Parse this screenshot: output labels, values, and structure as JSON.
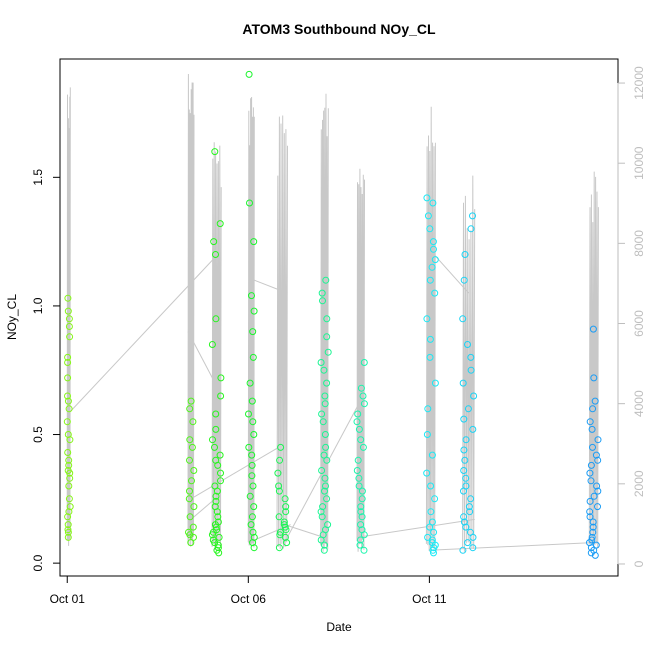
{
  "chart_data": {
    "type": "scatter",
    "title": "ATOM3 Southbound NOy_CL",
    "xlabel": "Date",
    "ylabel": "NOy_CL",
    "x_axis": {
      "type": "date",
      "range": [
        "2017-09-30T19:12",
        "2017-10-16T05:00"
      ],
      "ticks": [
        {
          "value": "2017-10-01",
          "label": "Oct 01"
        },
        {
          "value": "2017-10-06",
          "label": "Oct 06"
        },
        {
          "value": "2017-10-11",
          "label": "Oct 11"
        }
      ]
    },
    "y_axis": {
      "range": [
        -0.05,
        1.96
      ],
      "ticks": [
        {
          "value": 0.0,
          "label": "0.0"
        },
        {
          "value": 0.5,
          "label": "0.5"
        },
        {
          "value": 1.0,
          "label": "1.0"
        },
        {
          "value": 1.5,
          "label": "1.5"
        }
      ]
    },
    "y2_axis": {
      "label": "",
      "color": "#bebebe",
      "range": [
        -300,
        12600
      ],
      "ticks": [
        {
          "value": 0,
          "label": "0"
        },
        {
          "value": 2000,
          "label": "2000"
        },
        {
          "value": 4000,
          "label": "4000"
        },
        {
          "value": 6000,
          "label": "6000"
        },
        {
          "value": 8000,
          "label": "8000"
        },
        {
          "value": 10000,
          "label": "10000"
        },
        {
          "value": 12000,
          "label": "12000"
        }
      ]
    },
    "grid": false,
    "legend": "none",
    "colors": {
      "altitude_line": "#c8c8c8",
      "connector_line": "#c8c8c8",
      "point_gradient": [
        "#7fff00",
        "#00ff30",
        "#00ffb0",
        "#00ffff",
        "#0090ff"
      ]
    },
    "series": [
      {
        "flight_date": "2017-10-01",
        "color": "#86f518",
        "x_range": [
          "2017-10-01T00:00",
          "2017-10-01T02:00"
        ],
        "altitude_ft": {
          "min": 400,
          "max": 12200
        },
        "values": [
          0.1,
          0.12,
          0.13,
          0.15,
          0.18,
          0.2,
          0.22,
          0.25,
          0.3,
          0.33,
          0.35,
          0.36,
          0.38,
          0.4,
          0.43,
          0.48,
          0.5,
          0.55,
          0.6,
          0.63,
          0.65,
          0.72,
          0.78,
          0.8,
          0.88,
          0.92,
          0.95,
          0.98,
          1.03
        ]
      },
      {
        "flight_date": "2017-10-04",
        "color": "#4ef51a",
        "x_range": [
          "2017-10-04T08:00",
          "2017-10-04T12:00"
        ],
        "altitude_ft": {
          "min": 400,
          "max": 12600
        },
        "values": [
          0.08,
          0.1,
          0.11,
          0.12,
          0.14,
          0.18,
          0.22,
          0.25,
          0.28,
          0.32,
          0.36,
          0.4,
          0.45,
          0.48,
          0.55,
          0.6,
          0.63
        ]
      },
      {
        "flight_date": "2017-10-05",
        "color": "#26f51e",
        "x_range": [
          "2017-10-05T00:00",
          "2017-10-05T06:00"
        ],
        "altitude_ft": {
          "min": 300,
          "max": 10800
        },
        "values": [
          0.04,
          0.05,
          0.06,
          0.07,
          0.08,
          0.09,
          0.1,
          0.11,
          0.12,
          0.13,
          0.14,
          0.15,
          0.16,
          0.18,
          0.2,
          0.22,
          0.24,
          0.26,
          0.28,
          0.3,
          0.32,
          0.35,
          0.38,
          0.4,
          0.42,
          0.45,
          0.48,
          0.52,
          0.58,
          0.65,
          0.72,
          0.85,
          0.95,
          1.2,
          1.25,
          1.32,
          1.6
        ]
      },
      {
        "flight_date": "2017-10-06",
        "color": "#1af52c",
        "x_range": [
          "2017-10-06T00:00",
          "2017-10-06T04:00"
        ],
        "altitude_ft": {
          "min": 300,
          "max": 11800
        },
        "values": [
          0.06,
          0.08,
          0.1,
          0.12,
          0.15,
          0.18,
          0.22,
          0.26,
          0.3,
          0.34,
          0.38,
          0.42,
          0.45,
          0.5,
          0.55,
          0.58,
          0.63,
          0.7,
          0.8,
          0.9,
          0.98,
          1.04,
          1.25,
          1.4,
          1.9
        ]
      },
      {
        "flight_date": "2017-10-07",
        "color": "#1af554",
        "x_range": [
          "2017-10-06T19:00",
          "2017-10-07T02:00"
        ],
        "altitude_ft": {
          "min": 300,
          "max": 11200
        },
        "values": [
          0.06,
          0.08,
          0.1,
          0.11,
          0.12,
          0.13,
          0.14,
          0.15,
          0.16,
          0.18,
          0.2,
          0.22,
          0.25,
          0.28,
          0.3,
          0.35,
          0.4,
          0.45
        ]
      },
      {
        "flight_date": "2017-10-08",
        "color": "#1af592",
        "x_range": [
          "2017-10-08T00:00",
          "2017-10-08T05:00"
        ],
        "altitude_ft": {
          "min": 300,
          "max": 12200
        },
        "values": [
          0.05,
          0.07,
          0.09,
          0.11,
          0.13,
          0.15,
          0.18,
          0.2,
          0.22,
          0.25,
          0.28,
          0.3,
          0.33,
          0.36,
          0.4,
          0.42,
          0.45,
          0.5,
          0.55,
          0.58,
          0.62,
          0.65,
          0.7,
          0.75,
          0.78,
          0.82,
          0.88,
          0.95,
          1.02,
          1.05,
          1.1
        ]
      },
      {
        "flight_date": "2017-10-09",
        "color": "#1af5ac",
        "x_range": [
          "2017-10-09T00:00",
          "2017-10-09T05:00"
        ],
        "altitude_ft": {
          "min": 300,
          "max": 10500
        },
        "values": [
          0.05,
          0.07,
          0.09,
          0.11,
          0.13,
          0.15,
          0.18,
          0.2,
          0.22,
          0.25,
          0.28,
          0.3,
          0.33,
          0.36,
          0.4,
          0.45,
          0.48,
          0.52,
          0.55,
          0.58,
          0.62,
          0.65,
          0.68,
          0.78
        ]
      },
      {
        "flight_date": "2017-10-11",
        "color": "#1ae9f5",
        "x_range": [
          "2017-10-10T22:00",
          "2017-10-11T04:00"
        ],
        "altitude_ft": {
          "min": 300,
          "max": 11800
        },
        "values": [
          0.04,
          0.05,
          0.06,
          0.07,
          0.08,
          0.09,
          0.1,
          0.12,
          0.14,
          0.16,
          0.2,
          0.25,
          0.3,
          0.35,
          0.42,
          0.5,
          0.6,
          0.7,
          0.8,
          0.87,
          0.95,
          1.05,
          1.1,
          1.15,
          1.18,
          1.22,
          1.25,
          1.3,
          1.35,
          1.4,
          1.42
        ]
      },
      {
        "flight_date": "2017-10-12",
        "color": "#1ad3f5",
        "x_range": [
          "2017-10-11T22:00",
          "2017-10-12T06:00"
        ],
        "altitude_ft": {
          "min": 300,
          "max": 9700
        },
        "values": [
          0.05,
          0.06,
          0.08,
          0.1,
          0.12,
          0.14,
          0.16,
          0.18,
          0.2,
          0.22,
          0.25,
          0.28,
          0.3,
          0.33,
          0.36,
          0.4,
          0.44,
          0.48,
          0.52,
          0.56,
          0.6,
          0.65,
          0.7,
          0.75,
          0.8,
          0.85,
          0.95,
          1.1,
          1.2,
          1.3,
          1.35
        ]
      },
      {
        "flight_date": "2017-10-15",
        "color": "#1a9cf5",
        "x_range": [
          "2017-10-15T10:00",
          "2017-10-15T16:00"
        ],
        "altitude_ft": {
          "min": 300,
          "max": 10000
        },
        "values": [
          0.03,
          0.04,
          0.05,
          0.06,
          0.07,
          0.08,
          0.09,
          0.1,
          0.12,
          0.14,
          0.16,
          0.18,
          0.2,
          0.22,
          0.24,
          0.26,
          0.28,
          0.3,
          0.32,
          0.35,
          0.38,
          0.4,
          0.42,
          0.45,
          0.48,
          0.52,
          0.55,
          0.6,
          0.63,
          0.72,
          0.91
        ]
      }
    ],
    "connector_paths": [
      [
        [
          "2017-10-01T00:30",
          0.58
        ],
        [
          "2017-10-05T00:30",
          1.18
        ]
      ],
      [
        [
          "2017-10-04T10:00",
          0.17
        ],
        [
          "2017-10-05T02:00",
          0.25
        ]
      ],
      [
        [
          "2017-10-04T10:00",
          0.25
        ],
        [
          "2017-10-06T20:00",
          0.45
        ]
      ],
      [
        [
          "2017-10-04T08:00",
          0.9
        ],
        [
          "2017-10-05T02:00",
          0.7
        ]
      ],
      [
        [
          "2017-10-06T00:00",
          0.08
        ],
        [
          "2017-10-07T04:00",
          0.15
        ]
      ],
      [
        [
          "2017-10-06T04:00",
          1.1
        ],
        [
          "2017-10-07T02:00",
          1.05
        ]
      ],
      [
        [
          "2017-10-07T00:00",
          0.15
        ],
        [
          "2017-10-08T02:00",
          0.1
        ]
      ],
      [
        [
          "2017-10-07T00:00",
          0.08
        ],
        [
          "2017-10-09T04:00",
          0.65
        ]
      ],
      [
        [
          "2017-10-09T00:00",
          0.1
        ],
        [
          "2017-10-12T06:00",
          0.17
        ]
      ],
      [
        [
          "2017-10-11T00:00",
          1.22
        ],
        [
          "2017-10-12T02:00",
          1.05
        ]
      ],
      [
        [
          "2017-10-11T00:00",
          0.05
        ],
        [
          "2017-10-15T12:00",
          0.08
        ]
      ]
    ]
  }
}
